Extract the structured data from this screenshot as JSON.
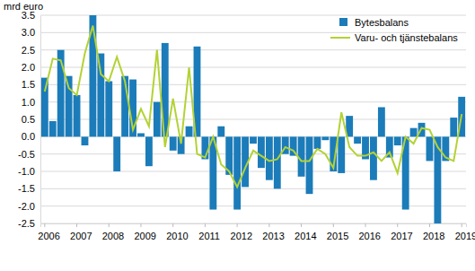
{
  "chart_data": {
    "type": "bar",
    "y_label": "mrd euro",
    "categories": [
      "2006",
      null,
      null,
      null,
      "2007",
      null,
      null,
      null,
      "2008",
      null,
      null,
      null,
      "2009",
      null,
      null,
      null,
      "2010",
      null,
      null,
      null,
      "2011",
      null,
      null,
      null,
      "2012",
      null,
      null,
      null,
      "2013",
      null,
      null,
      null,
      "2014",
      null,
      null,
      null,
      "2015",
      null,
      null,
      null,
      "2016",
      null,
      null,
      null,
      "2017",
      null,
      null,
      null,
      "2018",
      null,
      null,
      null,
      "2019"
    ],
    "series": [
      {
        "name": "Bytesbalans",
        "type": "bar",
        "color": "#1b7cb9",
        "values": [
          1.7,
          0.45,
          2.5,
          1.75,
          1.2,
          -0.25,
          3.5,
          2.4,
          1.6,
          -1.0,
          1.75,
          1.65,
          0.1,
          -0.85,
          1.0,
          2.7,
          -0.4,
          -0.5,
          0.3,
          2.6,
          -0.65,
          -2.1,
          0.3,
          -1.1,
          -2.1,
          -1.45,
          -0.2,
          -0.9,
          -1.25,
          -1.5,
          -0.5,
          -0.55,
          -1.15,
          -1.65,
          -0.35,
          -0.1,
          -1.0,
          -1.05,
          0.6,
          -0.2,
          -0.65,
          -1.25,
          0.85,
          -0.6,
          -0.25,
          -2.1,
          0.25,
          0.4,
          -0.7,
          -2.5,
          -0.7,
          0.55,
          1.15
        ]
      },
      {
        "name": "Varu- och tjänstebalans",
        "type": "line",
        "color": "#b3d235",
        "values": [
          1.3,
          2.25,
          2.2,
          1.4,
          1.2,
          2.4,
          3.2,
          1.8,
          1.6,
          2.3,
          1.6,
          0.2,
          0.8,
          0.3,
          2.5,
          -0.3,
          1.1,
          -0.2,
          2.0,
          -0.5,
          -0.6,
          0.0,
          -0.8,
          -1.0,
          -1.45,
          -0.9,
          -0.4,
          -0.55,
          -0.7,
          -0.65,
          -0.3,
          -0.4,
          -0.7,
          -0.7,
          -0.35,
          -0.5,
          -0.9,
          0.7,
          -0.3,
          -0.55,
          -0.55,
          -0.45,
          -0.7,
          -0.45,
          -1.05,
          0.0,
          -0.2,
          0.25,
          0.2,
          -0.3,
          -0.6,
          -0.7,
          0.65
        ]
      }
    ],
    "ylim": [
      -2.5,
      3.5
    ],
    "yticks": [
      -2.5,
      {
        "value": -2,
        "label": "-2.0"
      },
      -1.5,
      {
        "value": -1,
        "label": "-1.0"
      },
      -0.5,
      {
        "value": 0,
        "label": "0.0"
      },
      0.5,
      {
        "value": 1,
        "label": "1.0"
      },
      1.5,
      {
        "value": 2,
        "label": "2.0"
      },
      2.5,
      {
        "value": 3,
        "label": "3.0"
      },
      3.5
    ],
    "grid": true,
    "legend": "upper right"
  }
}
